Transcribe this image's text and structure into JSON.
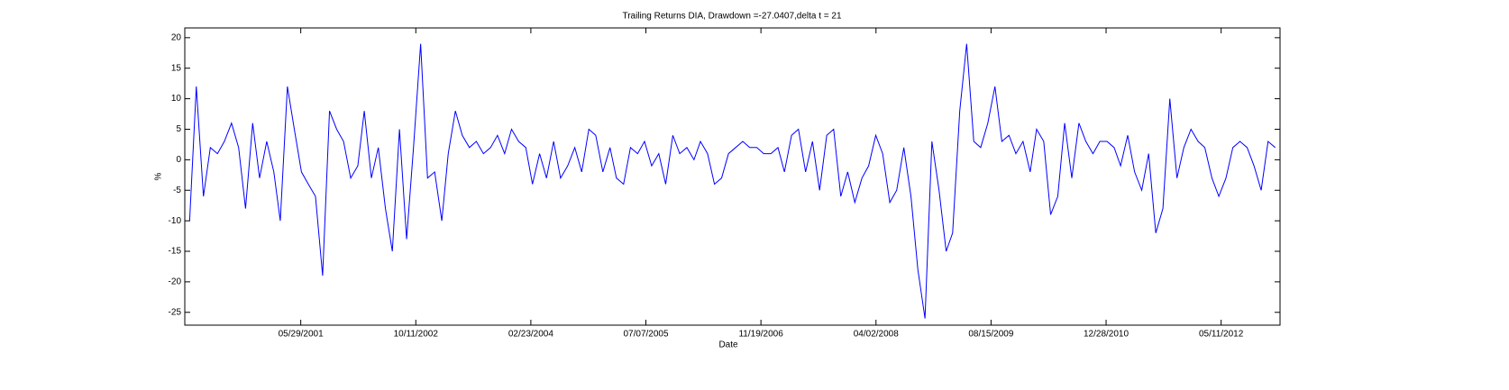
{
  "chart_data": {
    "type": "line",
    "title": "Trailing Returns DIA, Drawdown =-27.0407,delta t = 21",
    "xlabel": "Date",
    "ylabel": "%",
    "color": "#0000ff",
    "x": [
      "2000-02-01",
      "2000-03-01",
      "2000-04-01",
      "2000-05-01",
      "2000-06-01",
      "2000-07-01",
      "2000-08-01",
      "2000-09-01",
      "2000-10-01",
      "2000-11-01",
      "2000-12-01",
      "2001-01-01",
      "2001-02-01",
      "2001-03-01",
      "2001-04-01",
      "2001-05-01",
      "2001-06-01",
      "2001-07-01",
      "2001-08-01",
      "2001-09-01",
      "2001-10-01",
      "2001-11-01",
      "2001-12-01",
      "2002-01-01",
      "2002-02-01",
      "2002-03-01",
      "2002-04-01",
      "2002-05-01",
      "2002-06-01",
      "2002-07-01",
      "2002-08-01",
      "2002-09-01",
      "2002-10-01",
      "2002-11-01",
      "2002-12-01",
      "2003-01-01",
      "2003-02-01",
      "2003-03-01",
      "2003-04-01",
      "2003-05-01",
      "2003-06-01",
      "2003-07-01",
      "2003-08-01",
      "2003-09-01",
      "2003-10-01",
      "2003-11-01",
      "2003-12-01",
      "2004-01-01",
      "2004-02-01",
      "2004-03-01",
      "2004-04-01",
      "2004-05-01",
      "2004-06-01",
      "2004-07-01",
      "2004-08-01",
      "2004-09-01",
      "2004-10-01",
      "2004-11-01",
      "2004-12-01",
      "2005-01-01",
      "2005-02-01",
      "2005-03-01",
      "2005-04-01",
      "2005-05-01",
      "2005-06-01",
      "2005-07-01",
      "2005-08-01",
      "2005-09-01",
      "2005-10-01",
      "2005-11-01",
      "2005-12-01",
      "2006-01-01",
      "2006-02-01",
      "2006-03-01",
      "2006-04-01",
      "2006-05-01",
      "2006-06-01",
      "2006-07-01",
      "2006-08-01",
      "2006-09-01",
      "2006-10-01",
      "2006-11-01",
      "2006-12-01",
      "2007-01-01",
      "2007-02-01",
      "2007-03-01",
      "2007-04-01",
      "2007-05-01",
      "2007-06-01",
      "2007-07-01",
      "2007-08-01",
      "2007-09-01",
      "2007-10-01",
      "2007-11-01",
      "2007-12-01",
      "2008-01-01",
      "2008-02-01",
      "2008-03-01",
      "2008-04-01",
      "2008-05-01",
      "2008-06-01",
      "2008-07-01",
      "2008-08-01",
      "2008-09-01",
      "2008-10-01",
      "2008-11-01",
      "2008-12-01",
      "2009-01-01",
      "2009-02-01",
      "2009-03-01",
      "2009-04-01",
      "2009-05-01",
      "2009-06-01",
      "2009-07-01",
      "2009-08-01",
      "2009-09-01",
      "2009-10-01",
      "2009-11-01",
      "2009-12-01",
      "2010-01-01",
      "2010-02-01",
      "2010-03-01",
      "2010-04-01",
      "2010-05-01",
      "2010-06-01",
      "2010-07-01",
      "2010-08-01",
      "2010-09-01",
      "2010-10-01",
      "2010-11-01",
      "2010-12-01",
      "2011-01-01",
      "2011-02-01",
      "2011-03-01",
      "2011-04-01",
      "2011-05-01",
      "2011-06-01",
      "2011-07-01",
      "2011-08-01",
      "2011-09-01",
      "2011-10-01",
      "2011-11-01",
      "2011-12-01",
      "2012-01-01",
      "2012-02-01",
      "2012-03-01",
      "2012-04-01",
      "2012-05-01",
      "2012-06-01",
      "2012-07-01",
      "2012-08-01",
      "2012-09-01",
      "2012-10-01",
      "2012-11-01",
      "2012-12-01",
      "2013-01-01"
    ],
    "values": [
      -10,
      12,
      -6,
      2,
      1,
      3,
      6,
      2,
      -8,
      6,
      -3,
      3,
      -2,
      -10,
      12,
      5,
      -2,
      -4,
      -6,
      -19,
      8,
      5,
      3,
      -3,
      -1,
      8,
      -3,
      2,
      -8,
      -15,
      5,
      -13,
      2,
      19,
      -3,
      -2,
      -10,
      1,
      8,
      4,
      2,
      3,
      1,
      2,
      4,
      1,
      5,
      3,
      2,
      -4,
      1,
      -3,
      3,
      -3,
      -1,
      2,
      -2,
      5,
      4,
      -2,
      2,
      -3,
      -4,
      2,
      1,
      3,
      -1,
      1,
      -4,
      4,
      1,
      2,
      0,
      3,
      1,
      -4,
      -3,
      1,
      2,
      3,
      2,
      2,
      1,
      1,
      2,
      -2,
      4,
      5,
      -2,
      3,
      -5,
      4,
      5,
      -6,
      -2,
      -7,
      -3,
      -1,
      4,
      1,
      -7,
      -5,
      2,
      -6,
      -18,
      -26,
      3,
      -5,
      -15,
      -12,
      8,
      19,
      3,
      2,
      6,
      12,
      3,
      4,
      1,
      3,
      -2,
      5,
      3,
      -9,
      -6,
      6,
      -3,
      6,
      3,
      1,
      3,
      3,
      2,
      -1,
      4,
      -2,
      -5,
      1,
      -12,
      -8,
      10,
      -3,
      2,
      5,
      3,
      2,
      -3,
      -6,
      -3,
      2,
      3,
      2,
      -1,
      -5,
      3,
      2
    ],
    "xlim": [
      "2000-01-11",
      "2013-01-22"
    ],
    "xticks": [
      {
        "value": "2001-05-29",
        "label": "05/29/2001"
      },
      {
        "value": "2002-10-11",
        "label": "10/11/2002"
      },
      {
        "value": "2004-02-23",
        "label": "02/23/2004"
      },
      {
        "value": "2005-07-07",
        "label": "07/07/2005"
      },
      {
        "value": "2006-11-19",
        "label": "11/19/2006"
      },
      {
        "value": "2008-04-02",
        "label": "04/02/2008"
      },
      {
        "value": "2009-08-15",
        "label": "08/15/2009"
      },
      {
        "value": "2010-12-28",
        "label": "12/28/2010"
      },
      {
        "value": "2012-05-11",
        "label": "05/11/2012"
      }
    ],
    "ylim": [
      -27.1,
      21.6
    ],
    "yticks": [
      -25,
      -20,
      -15,
      -10,
      -5,
      0,
      5,
      10,
      15,
      20
    ],
    "grid": false
  }
}
